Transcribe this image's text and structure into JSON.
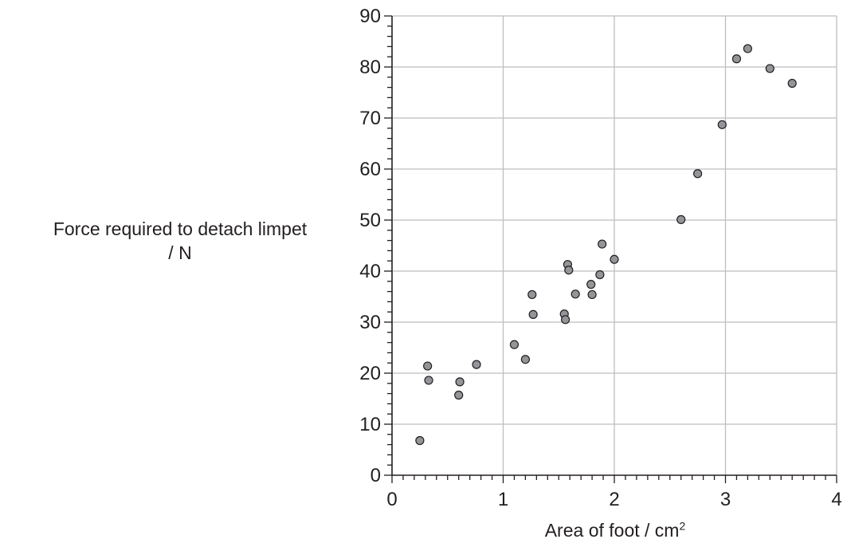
{
  "chart_data": {
    "type": "scatter",
    "title": "",
    "ylabel_line1": "Force required to detach limpet",
    "ylabel_line2": "/ N",
    "xlabel_text": "Area of foot / cm",
    "xlabel_sup": "2",
    "xlim": [
      0,
      4
    ],
    "ylim": [
      0,
      90
    ],
    "x_major_ticks": [
      0,
      1,
      2,
      3,
      4
    ],
    "y_major_ticks": [
      0,
      10,
      20,
      30,
      40,
      50,
      60,
      70,
      80,
      90
    ],
    "x_minor_step": 0.1,
    "y_minor_step": 2,
    "grid": true,
    "legend": "none",
    "colors": {
      "marker_fill": "#939598",
      "marker_stroke": "#231f20",
      "grid": "#bcbec0",
      "axis": "#231f20"
    },
    "points": [
      {
        "x": 0.25,
        "y": 6.8
      },
      {
        "x": 0.32,
        "y": 21.4
      },
      {
        "x": 0.33,
        "y": 18.6
      },
      {
        "x": 0.6,
        "y": 15.7
      },
      {
        "x": 0.61,
        "y": 18.3
      },
      {
        "x": 0.76,
        "y": 21.7
      },
      {
        "x": 1.1,
        "y": 25.6
      },
      {
        "x": 1.2,
        "y": 22.7
      },
      {
        "x": 1.26,
        "y": 35.4
      },
      {
        "x": 1.27,
        "y": 31.5
      },
      {
        "x": 1.55,
        "y": 31.6
      },
      {
        "x": 1.56,
        "y": 30.5
      },
      {
        "x": 1.58,
        "y": 41.3
      },
      {
        "x": 1.59,
        "y": 40.2
      },
      {
        "x": 1.65,
        "y": 35.5
      },
      {
        "x": 1.79,
        "y": 37.4
      },
      {
        "x": 1.8,
        "y": 35.4
      },
      {
        "x": 1.87,
        "y": 39.3
      },
      {
        "x": 1.89,
        "y": 45.3
      },
      {
        "x": 2.0,
        "y": 42.3
      },
      {
        "x": 2.6,
        "y": 50.1
      },
      {
        "x": 2.75,
        "y": 59.1
      },
      {
        "x": 2.97,
        "y": 68.7
      },
      {
        "x": 3.1,
        "y": 81.6
      },
      {
        "x": 3.2,
        "y": 83.6
      },
      {
        "x": 3.4,
        "y": 79.7
      },
      {
        "x": 3.6,
        "y": 76.8
      }
    ]
  }
}
